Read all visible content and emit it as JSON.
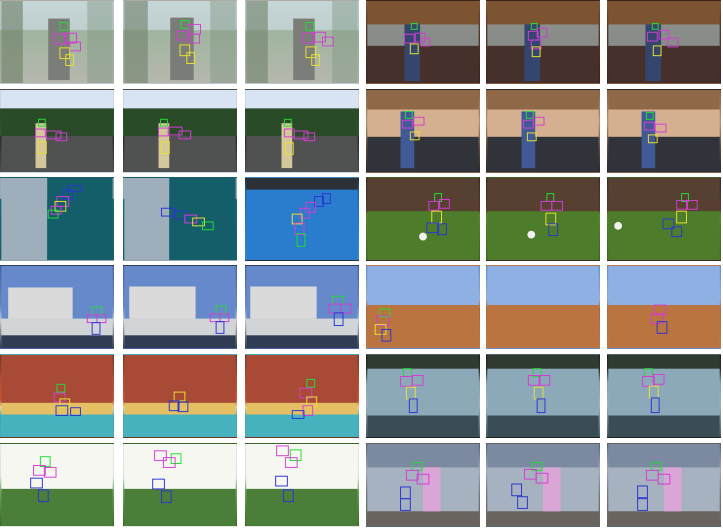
{
  "visible_text": []
}
